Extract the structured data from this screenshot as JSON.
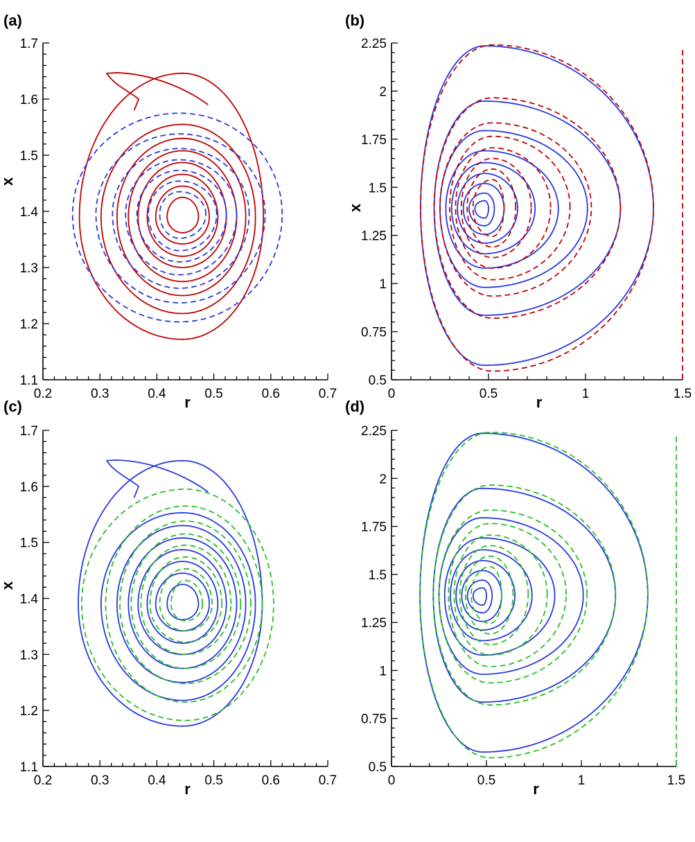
{
  "chart_data": [
    {
      "panel": "(a)",
      "type": "contour",
      "xlabel": "r",
      "ylabel": "x",
      "xlim": [
        0.2,
        0.7
      ],
      "ylim": [
        1.1,
        1.7
      ],
      "xticks": [
        "0.2",
        "0.3",
        "0.4",
        "0.5",
        "0.6",
        "0.7"
      ],
      "yticks": [
        "1.1",
        "1.2",
        "1.3",
        "1.4",
        "1.5",
        "1.6",
        "1.7"
      ],
      "series": [
        {
          "style": "solid",
          "color": "#c00000",
          "center": [
            0.445,
            1.39
          ],
          "contours": [
            {
              "rmin": 0.264,
              "rmax": 0.587,
              "xmin": 1.172,
              "xmax": 1.646,
              "tail": true
            },
            {
              "rmin": 0.302,
              "rmax": 0.573,
              "xmin": 1.218,
              "xmax": 1.555
            },
            {
              "rmin": 0.33,
              "rmax": 0.556,
              "xmin": 1.25,
              "xmax": 1.53
            },
            {
              "rmin": 0.35,
              "rmax": 0.54,
              "xmin": 1.275,
              "xmax": 1.508
            },
            {
              "rmin": 0.367,
              "rmax": 0.522,
              "xmin": 1.3,
              "xmax": 1.487
            },
            {
              "rmin": 0.383,
              "rmax": 0.507,
              "xmin": 1.32,
              "xmax": 1.466
            },
            {
              "rmin": 0.398,
              "rmax": 0.492,
              "xmin": 1.342,
              "xmax": 1.445
            },
            {
              "rmin": 0.418,
              "rmax": 0.473,
              "xmin": 1.362,
              "xmax": 1.425
            }
          ]
        },
        {
          "style": "dashed",
          "color": "#2838e0",
          "center": [
            0.44,
            1.395
          ],
          "contours": [
            {
              "rmin": 0.252,
              "rmax": 0.62,
              "xmin": 1.203,
              "xmax": 1.575
            },
            {
              "rmin": 0.293,
              "rmax": 0.59,
              "xmin": 1.237,
              "xmax": 1.538
            },
            {
              "rmin": 0.322,
              "rmax": 0.562,
              "xmin": 1.263,
              "xmax": 1.512
            },
            {
              "rmin": 0.345,
              "rmax": 0.54,
              "xmin": 1.287,
              "xmax": 1.492
            },
            {
              "rmin": 0.365,
              "rmax": 0.522,
              "xmin": 1.31,
              "xmax": 1.473
            },
            {
              "rmin": 0.385,
              "rmax": 0.505,
              "xmin": 1.33,
              "xmax": 1.454
            },
            {
              "rmin": 0.405,
              "rmax": 0.486,
              "xmin": 1.352,
              "xmax": 1.435
            }
          ]
        }
      ]
    },
    {
      "panel": "(b)",
      "type": "contour",
      "xlabel": "r",
      "ylabel": "x",
      "xlim": [
        0,
        1.5
      ],
      "ylim": [
        0.5,
        2.25
      ],
      "xticks": [
        "0",
        "0.5",
        "1",
        "1.5"
      ],
      "yticks": [
        "0.5",
        "0.75",
        "1",
        "1.25",
        "1.5",
        "1.75",
        "2",
        "2.25"
      ],
      "series": [
        {
          "style": "solid",
          "color": "#2838e0",
          "center": [
            0.48,
            1.39
          ],
          "contours": [
            {
              "rmin": 0.15,
              "rmax": 1.35,
              "xmin": 0.575,
              "xmax": 2.235
            },
            {
              "rmin": 0.22,
              "rmax": 1.18,
              "xmin": 0.835,
              "xmax": 1.948
            },
            {
              "rmin": 0.25,
              "rmax": 1.01,
              "xmin": 0.98,
              "xmax": 1.795
            },
            {
              "rmin": 0.28,
              "rmax": 0.86,
              "xmin": 1.08,
              "xmax": 1.69
            },
            {
              "rmin": 0.31,
              "rmax": 0.74,
              "xmin": 1.155,
              "xmax": 1.628
            },
            {
              "rmin": 0.34,
              "rmax": 0.65,
              "xmin": 1.21,
              "xmax": 1.572
            },
            {
              "rmin": 0.37,
              "rmax": 0.58,
              "xmin": 1.255,
              "xmax": 1.52
            },
            {
              "rmin": 0.4,
              "rmax": 0.53,
              "xmin": 1.3,
              "xmax": 1.47
            },
            {
              "rmin": 0.43,
              "rmax": 0.5,
              "xmin": 1.34,
              "xmax": 1.43
            }
          ],
          "reference_line": null
        },
        {
          "style": "dashed",
          "color": "#c00000",
          "center": [
            0.52,
            1.395
          ],
          "contours": [
            {
              "rmin": 0.15,
              "rmax": 1.35,
              "xmin": 0.545,
              "xmax": 2.24
            },
            {
              "rmin": 0.22,
              "rmax": 1.18,
              "xmin": 0.82,
              "xmax": 1.965
            },
            {
              "rmin": 0.25,
              "rmax": 1.03,
              "xmin": 0.935,
              "xmax": 1.835
            },
            {
              "rmin": 0.3,
              "rmax": 0.92,
              "xmin": 1.02,
              "xmax": 1.765
            },
            {
              "rmin": 0.33,
              "rmax": 0.82,
              "xmin": 1.08,
              "xmax": 1.705
            },
            {
              "rmin": 0.36,
              "rmax": 0.72,
              "xmin": 1.135,
              "xmax": 1.65
            },
            {
              "rmin": 0.39,
              "rmax": 0.64,
              "xmin": 1.19,
              "xmax": 1.595
            },
            {
              "rmin": 0.42,
              "rmax": 0.58,
              "xmin": 1.245,
              "xmax": 1.54
            }
          ],
          "reference_line": {
            "r": 1.5,
            "xmin": 0.5,
            "xmax": 2.22
          }
        }
      ]
    },
    {
      "panel": "(c)",
      "type": "contour",
      "xlabel": "r",
      "ylabel": "x",
      "xlim": [
        0.2,
        0.7
      ],
      "ylim": [
        1.1,
        1.7
      ],
      "xticks": [
        "0.2",
        "0.3",
        "0.4",
        "0.5",
        "0.6",
        "0.7"
      ],
      "yticks": [
        "1.1",
        "1.2",
        "1.3",
        "1.4",
        "1.5",
        "1.6",
        "1.7"
      ],
      "series": [
        {
          "style": "solid",
          "color": "#2838e0",
          "center": [
            0.445,
            1.39
          ],
          "contours": [
            {
              "rmin": 0.262,
              "rmax": 0.585,
              "xmin": 1.172,
              "xmax": 1.646,
              "tail": true
            },
            {
              "rmin": 0.302,
              "rmax": 0.573,
              "xmin": 1.218,
              "xmax": 1.553
            },
            {
              "rmin": 0.33,
              "rmax": 0.556,
              "xmin": 1.25,
              "xmax": 1.53
            },
            {
              "rmin": 0.35,
              "rmax": 0.54,
              "xmin": 1.275,
              "xmax": 1.508
            },
            {
              "rmin": 0.367,
              "rmax": 0.522,
              "xmin": 1.3,
              "xmax": 1.487
            },
            {
              "rmin": 0.383,
              "rmax": 0.507,
              "xmin": 1.32,
              "xmax": 1.466
            },
            {
              "rmin": 0.398,
              "rmax": 0.492,
              "xmin": 1.342,
              "xmax": 1.445
            },
            {
              "rmin": 0.418,
              "rmax": 0.473,
              "xmin": 1.362,
              "xmax": 1.425
            }
          ]
        },
        {
          "style": "dashed",
          "color": "#22c022",
          "center": [
            0.45,
            1.39
          ],
          "contours": [
            {
              "rmin": 0.268,
              "rmax": 0.605,
              "xmin": 1.182,
              "xmax": 1.595
            },
            {
              "rmin": 0.31,
              "rmax": 0.585,
              "xmin": 1.215,
              "xmax": 1.565
            },
            {
              "rmin": 0.335,
              "rmax": 0.565,
              "xmin": 1.248,
              "xmax": 1.538
            },
            {
              "rmin": 0.355,
              "rmax": 0.547,
              "xmin": 1.275,
              "xmax": 1.515
            },
            {
              "rmin": 0.372,
              "rmax": 0.53,
              "xmin": 1.3,
              "xmax": 1.495
            },
            {
              "rmin": 0.388,
              "rmax": 0.514,
              "xmin": 1.322,
              "xmax": 1.474
            },
            {
              "rmin": 0.405,
              "rmax": 0.497,
              "xmin": 1.342,
              "xmax": 1.453
            },
            {
              "rmin": 0.425,
              "rmax": 0.48,
              "xmin": 1.36,
              "xmax": 1.432
            }
          ]
        }
      ]
    },
    {
      "panel": "(d)",
      "type": "contour",
      "xlabel": "r",
      "ylabel": "x",
      "xlim": [
        0,
        1.5
      ],
      "ylim": [
        0.5,
        2.25
      ],
      "xticks": [
        "0",
        "0.5",
        "1",
        "1.5"
      ],
      "yticks": [
        "0.5",
        "0.75",
        "1",
        "1.25",
        "1.5",
        "1.75",
        "2",
        "2.25"
      ],
      "series": [
        {
          "style": "solid",
          "color": "#2838e0",
          "center": [
            0.48,
            1.39
          ],
          "contours": [
            {
              "rmin": 0.15,
              "rmax": 1.35,
              "xmin": 0.575,
              "xmax": 2.235
            },
            {
              "rmin": 0.22,
              "rmax": 1.18,
              "xmin": 0.835,
              "xmax": 1.948
            },
            {
              "rmin": 0.25,
              "rmax": 1.01,
              "xmin": 0.98,
              "xmax": 1.795
            },
            {
              "rmin": 0.28,
              "rmax": 0.86,
              "xmin": 1.08,
              "xmax": 1.69
            },
            {
              "rmin": 0.31,
              "rmax": 0.74,
              "xmin": 1.155,
              "xmax": 1.628
            },
            {
              "rmin": 0.34,
              "rmax": 0.65,
              "xmin": 1.21,
              "xmax": 1.572
            },
            {
              "rmin": 0.37,
              "rmax": 0.58,
              "xmin": 1.255,
              "xmax": 1.52
            },
            {
              "rmin": 0.4,
              "rmax": 0.53,
              "xmin": 1.3,
              "xmax": 1.47
            },
            {
              "rmin": 0.43,
              "rmax": 0.5,
              "xmin": 1.34,
              "xmax": 1.43
            }
          ],
          "reference_line": null
        },
        {
          "style": "dashed",
          "color": "#22c022",
          "center": [
            0.52,
            1.395
          ],
          "contours": [
            {
              "rmin": 0.15,
              "rmax": 1.35,
              "xmin": 0.545,
              "xmax": 2.24
            },
            {
              "rmin": 0.22,
              "rmax": 1.18,
              "xmin": 0.82,
              "xmax": 1.965
            },
            {
              "rmin": 0.25,
              "rmax": 1.03,
              "xmin": 0.935,
              "xmax": 1.835
            },
            {
              "rmin": 0.3,
              "rmax": 0.92,
              "xmin": 1.02,
              "xmax": 1.765
            },
            {
              "rmin": 0.33,
              "rmax": 0.82,
              "xmin": 1.08,
              "xmax": 1.705
            },
            {
              "rmin": 0.36,
              "rmax": 0.72,
              "xmin": 1.135,
              "xmax": 1.65
            },
            {
              "rmin": 0.39,
              "rmax": 0.64,
              "xmin": 1.19,
              "xmax": 1.595
            },
            {
              "rmin": 0.42,
              "rmax": 0.58,
              "xmin": 1.245,
              "xmax": 1.54
            }
          ],
          "reference_line": {
            "r": 1.5,
            "xmin": 0.5,
            "xmax": 2.22
          }
        }
      ]
    }
  ]
}
